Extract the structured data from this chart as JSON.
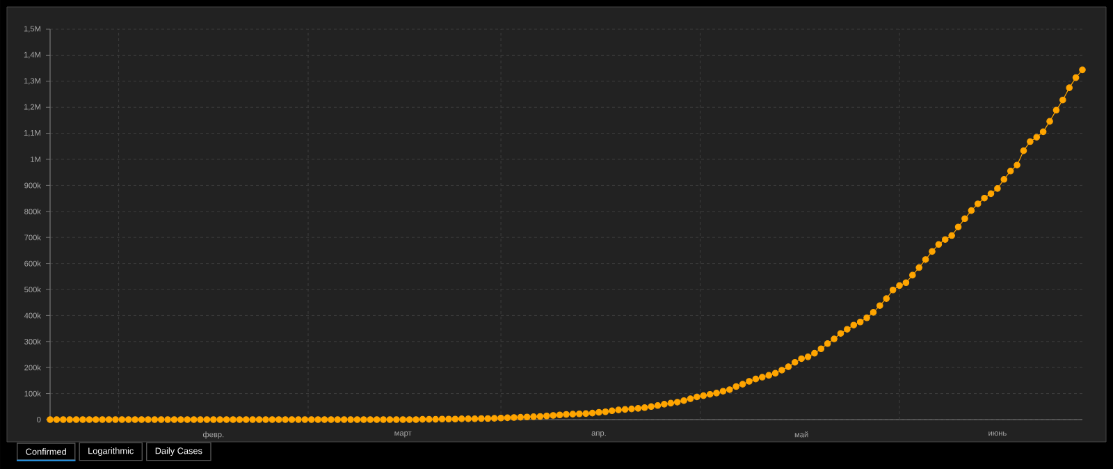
{
  "chart_data": {
    "type": "line",
    "color": "#ffa500",
    "marker": "circle",
    "grid": true,
    "categories": [
      null,
      null,
      null,
      null,
      null,
      null,
      null,
      null,
      null,
      null,
      null,
      null,
      null,
      null,
      null,
      null,
      null,
      null,
      null,
      null,
      null,
      null,
      null,
      null,
      null,
      "февр.",
      null,
      null,
      null,
      null,
      null,
      null,
      null,
      null,
      null,
      null,
      null,
      null,
      null,
      null,
      null,
      null,
      null,
      null,
      null,
      null,
      null,
      null,
      null,
      null,
      null,
      null,
      null,
      null,
      "март",
      null,
      null,
      null,
      null,
      null,
      null,
      null,
      null,
      null,
      null,
      null,
      null,
      null,
      null,
      null,
      null,
      null,
      null,
      null,
      null,
      null,
      null,
      null,
      null,
      null,
      null,
      null,
      null,
      null,
      "апр.",
      null,
      null,
      null,
      null,
      null,
      null,
      null,
      null,
      null,
      null,
      null,
      null,
      null,
      null,
      null,
      null,
      null,
      null,
      null,
      null,
      null,
      null,
      null,
      null,
      null,
      null,
      null,
      null,
      null,
      null,
      "май",
      null,
      null,
      null,
      null,
      null,
      null,
      null,
      null,
      null,
      null,
      null,
      null,
      null,
      null,
      null,
      null,
      null,
      null,
      null,
      null,
      null,
      null,
      null,
      null,
      null,
      null,
      null,
      null,
      null,
      "июнь",
      null,
      null,
      null,
      null,
      null,
      null,
      null,
      null,
      null,
      null,
      null,
      null,
      null
    ],
    "values": [
      0,
      0,
      0,
      0,
      0,
      0,
      0,
      0,
      0,
      0,
      0,
      0,
      0,
      0,
      0,
      0,
      0,
      0,
      0,
      0,
      0,
      0,
      0,
      0,
      0,
      0,
      0,
      0,
      0,
      0,
      0,
      0,
      0,
      0,
      0,
      0,
      0,
      0,
      0,
      0,
      0,
      0,
      0,
      0,
      0,
      0,
      0,
      0,
      0,
      0,
      0,
      0,
      0,
      0,
      0,
      0,
      0,
      1000,
      1000,
      1000,
      2000,
      2000,
      2000,
      3000,
      3000,
      3000,
      4000,
      4000,
      5000,
      6000,
      7000,
      8000,
      9000,
      10000,
      11000,
      12000,
      14000,
      16000,
      18000,
      20000,
      21000,
      22000,
      23000,
      25000,
      28000,
      30000,
      34000,
      37000,
      39000,
      41000,
      43000,
      46000,
      50000,
      54000,
      59000,
      63000,
      67000,
      73000,
      80000,
      87000,
      92000,
      97000,
      102000,
      109000,
      115000,
      127000,
      136000,
      147000,
      156000,
      163000,
      170000,
      178000,
      190000,
      203000,
      220000,
      234000,
      241000,
      255000,
      272000,
      292000,
      310000,
      331000,
      347000,
      363000,
      375000,
      391000,
      412000,
      438000,
      465000,
      498000,
      515000,
      526000,
      555000,
      584000,
      615000,
      646000,
      673000,
      692000,
      707000,
      740000,
      772000,
      803000,
      829000,
      851000,
      868000,
      888000,
      923000,
      955000,
      978000,
      1033000,
      1068000,
      1085000,
      1106000,
      1146000,
      1189000,
      1228000,
      1275000,
      1314000,
      1344000
    ],
    "ylim": [
      0,
      1500000
    ],
    "yticks": [
      0,
      {
        "value": 100000,
        "label": "100k"
      },
      {
        "value": 200000,
        "label": "200k"
      },
      {
        "value": 300000,
        "label": "300k"
      },
      {
        "value": 400000,
        "label": "400k"
      },
      {
        "value": 500000,
        "label": "500k"
      },
      {
        "value": 600000,
        "label": "600k"
      },
      {
        "value": 700000,
        "label": "700k"
      },
      {
        "value": 800000,
        "label": "800k"
      },
      {
        "value": 900000,
        "label": "900k"
      },
      {
        "value": 1000000,
        "label": "1M"
      },
      {
        "value": 1100000,
        "label": "1,1M"
      },
      {
        "value": 1200000,
        "label": "1,2M"
      },
      {
        "value": 1300000,
        "label": "1,3M"
      },
      {
        "value": 1400000,
        "label": "1,4M"
      },
      {
        "value": 1500000,
        "label": "1,5M"
      }
    ],
    "annotations": [
      "Confirmed",
      "Logarithmic",
      "Daily Cases"
    ]
  }
}
